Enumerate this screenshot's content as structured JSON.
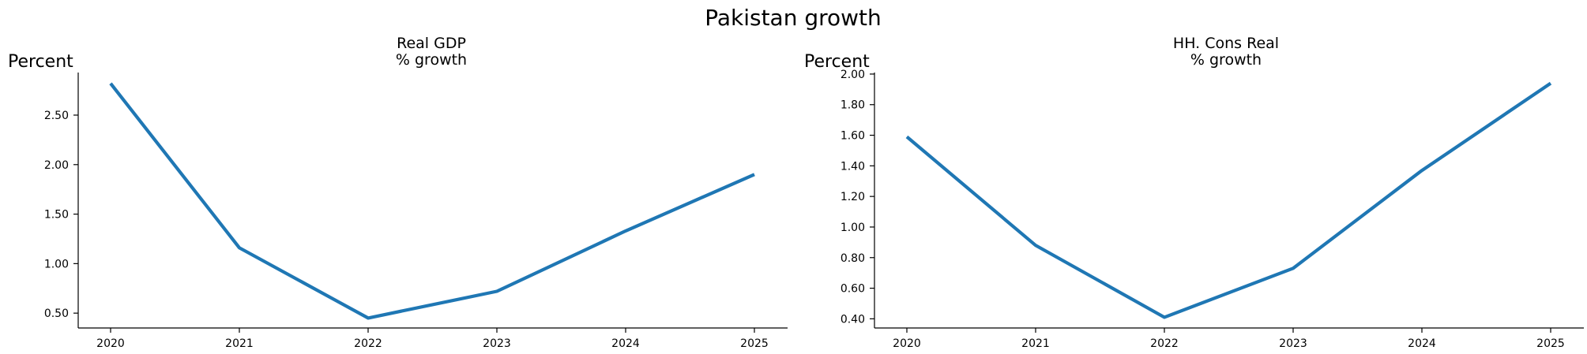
{
  "figure": {
    "title": "Pakistan growth"
  },
  "chart_data": [
    {
      "type": "line",
      "title_lines": [
        "Real GDP",
        "% growth"
      ],
      "ylabel": "Percent",
      "xlabel": "",
      "x": [
        "2020",
        "2021",
        "2022",
        "2023",
        "2024",
        "2025"
      ],
      "series": [
        {
          "values": [
            2.82,
            1.16,
            0.45,
            0.72,
            1.33,
            1.9
          ],
          "color": "#1f77b4"
        }
      ],
      "ylim": [
        0.35,
        2.93
      ],
      "yticks": [
        0.5,
        1.0,
        1.5,
        2.0,
        2.5
      ],
      "ytick_labels": [
        "0.50",
        "1.00",
        "1.50",
        "2.00",
        "2.50"
      ],
      "grid": false
    },
    {
      "type": "line",
      "title_lines": [
        "HH. Cons Real",
        "% growth"
      ],
      "ylabel": "Percent",
      "xlabel": "",
      "x": [
        "2020",
        "2021",
        "2022",
        "2023",
        "2024",
        "2025"
      ],
      "series": [
        {
          "values": [
            1.59,
            0.88,
            0.41,
            0.73,
            1.37,
            1.94
          ],
          "color": "#1f77b4"
        }
      ],
      "ylim": [
        0.34,
        2.01
      ],
      "yticks": [
        0.4,
        0.6,
        0.8,
        1.0,
        1.2,
        1.4,
        1.6,
        1.8,
        2.0
      ],
      "ytick_labels": [
        "0.40",
        "0.60",
        "0.80",
        "1.00",
        "1.20",
        "1.40",
        "1.60",
        "1.80",
        "2.00"
      ],
      "grid": false
    }
  ]
}
